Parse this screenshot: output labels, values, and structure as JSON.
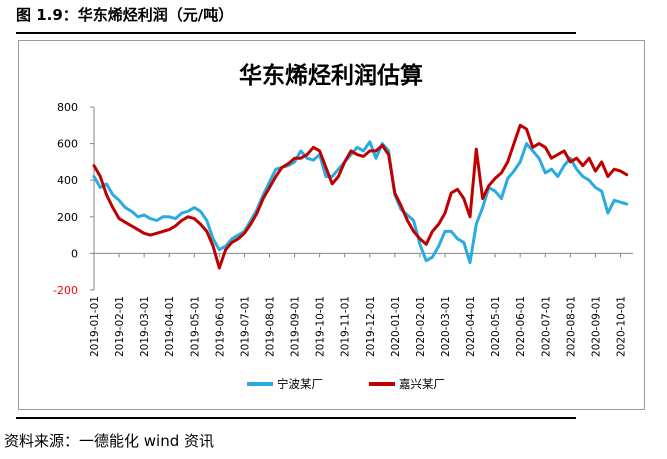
{
  "caption": "图 1.9：华东烯烃利润（元/吨）",
  "source": "资料来源：一德能化  wind 资讯",
  "chart_data": {
    "type": "line",
    "title": "华东烯烃利润估算",
    "xlabel": "",
    "ylabel": "",
    "ylim": [
      -200,
      800
    ],
    "yticks": [
      -200,
      0,
      200,
      400,
      600,
      800
    ],
    "negative_tick_color": "#ff0000",
    "xlim": [
      0,
      21.5
    ],
    "x_tick_labels": [
      "2019-01-01",
      "2019-02-01",
      "2019-03-01",
      "2019-04-01",
      "2019-05-01",
      "2019-06-01",
      "2019-07-01",
      "2019-08-01",
      "2019-09-01",
      "2019-10-01",
      "2019-11-01",
      "2019-12-01",
      "2020-01-01",
      "2020-02-01",
      "2020-03-01",
      "2020-04-01",
      "2020-05-01",
      "2020-06-01",
      "2020-07-01",
      "2020-08-01",
      "2020-09-01",
      "2020-10-01"
    ],
    "x_unit": "months since 2019-01-01",
    "grid": false,
    "legend_position": "bottom",
    "series": [
      {
        "name": "宁波某厂",
        "color": "#29abe2",
        "x": [
          0,
          0.25,
          0.5,
          0.75,
          1.0,
          1.25,
          1.5,
          1.75,
          2.0,
          2.25,
          2.5,
          2.75,
          3.0,
          3.25,
          3.5,
          3.75,
          4.0,
          4.25,
          4.5,
          4.75,
          5.0,
          5.25,
          5.5,
          5.75,
          6.0,
          6.25,
          6.5,
          6.75,
          7.0,
          7.25,
          7.5,
          7.75,
          8.0,
          8.25,
          8.5,
          8.75,
          9.0,
          9.25,
          9.5,
          9.75,
          10.0,
          10.25,
          10.5,
          10.75,
          11.0,
          11.25,
          11.5,
          11.75,
          12.0,
          12.25,
          12.5,
          12.75,
          13.0,
          13.25,
          13.5,
          13.75,
          14.0,
          14.25,
          14.5,
          14.75,
          15.0,
          15.25,
          15.5,
          15.75,
          16.0,
          16.25,
          16.5,
          16.75,
          17.0,
          17.25,
          17.5,
          17.75,
          18.0,
          18.25,
          18.5,
          18.75,
          19.0,
          19.25,
          19.5,
          19.75,
          20.0,
          20.25,
          20.5,
          20.75,
          21.0,
          21.25
        ],
        "values": [
          420,
          360,
          380,
          320,
          290,
          250,
          230,
          200,
          210,
          190,
          180,
          200,
          200,
          190,
          220,
          230,
          250,
          230,
          180,
          80,
          20,
          40,
          80,
          100,
          120,
          180,
          240,
          320,
          390,
          460,
          470,
          480,
          500,
          560,
          520,
          510,
          540,
          420,
          420,
          460,
          500,
          540,
          580,
          560,
          610,
          520,
          600,
          560,
          320,
          240,
          210,
          180,
          50,
          -40,
          -20,
          40,
          120,
          120,
          80,
          60,
          -50,
          160,
          250,
          360,
          340,
          300,
          410,
          450,
          500,
          600,
          560,
          520,
          440,
          460,
          420,
          480,
          520,
          460,
          420,
          400,
          360,
          340,
          220,
          290,
          280,
          270
        ]
      },
      {
        "name": "嘉兴某厂",
        "color": "#c00000",
        "x": [
          0,
          0.25,
          0.5,
          0.75,
          1.0,
          1.25,
          1.5,
          1.75,
          2.0,
          2.25,
          2.5,
          2.75,
          3.0,
          3.25,
          3.5,
          3.75,
          4.0,
          4.25,
          4.5,
          4.75,
          5.0,
          5.25,
          5.5,
          5.75,
          6.0,
          6.25,
          6.5,
          6.75,
          7.0,
          7.25,
          7.5,
          7.75,
          8.0,
          8.25,
          8.5,
          8.75,
          9.0,
          9.25,
          9.5,
          9.75,
          10.0,
          10.25,
          10.5,
          10.75,
          11.0,
          11.25,
          11.5,
          11.75,
          12.0,
          12.25,
          12.5,
          12.75,
          13.0,
          13.25,
          13.5,
          13.75,
          14.0,
          14.25,
          14.5,
          14.75,
          15.0,
          15.25,
          15.5,
          15.75,
          16.0,
          16.25,
          16.5,
          16.75,
          17.0,
          17.25,
          17.5,
          17.75,
          18.0,
          18.25,
          18.5,
          18.75,
          19.0,
          19.25,
          19.5,
          19.75,
          20.0,
          20.25,
          20.5,
          20.75,
          21.0,
          21.25
        ],
        "values": [
          480,
          420,
          320,
          250,
          190,
          170,
          150,
          130,
          110,
          100,
          110,
          120,
          130,
          150,
          180,
          200,
          190,
          160,
          120,
          40,
          -80,
          20,
          60,
          80,
          110,
          160,
          220,
          300,
          360,
          420,
          470,
          490,
          520,
          520,
          540,
          580,
          560,
          470,
          380,
          420,
          500,
          560,
          540,
          530,
          560,
          560,
          590,
          540,
          330,
          260,
          180,
          120,
          80,
          50,
          120,
          160,
          220,
          330,
          350,
          300,
          200,
          570,
          300,
          370,
          410,
          440,
          500,
          600,
          700,
          680,
          580,
          600,
          580,
          520,
          540,
          560,
          500,
          520,
          480,
          520,
          450,
          500,
          420,
          460,
          450,
          430
        ]
      }
    ]
  }
}
